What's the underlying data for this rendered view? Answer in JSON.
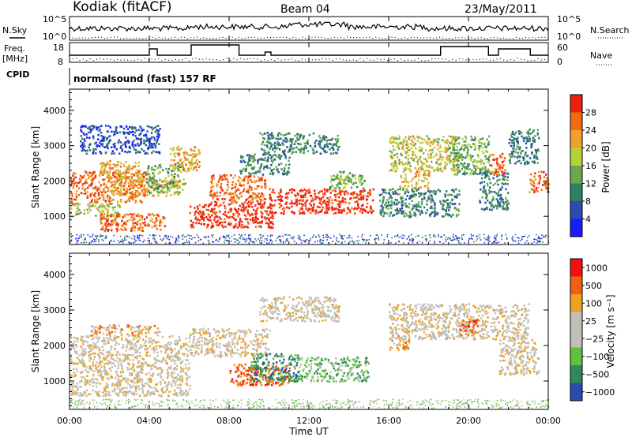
{
  "header": {
    "station": "Kodiak (fitACF)",
    "beam": "Beam 04",
    "date": "23/May/2011"
  },
  "top_panel": {
    "nsky_label": "N.Sky",
    "nsearch_label": "N.Search",
    "left_axis_ticks": [
      "10^5",
      "10^0"
    ],
    "right_axis_ticks": [
      "10^5",
      "10^0"
    ]
  },
  "freq_panel": {
    "freq_label_line1": "Freq.",
    "freq_label_line2": "[MHz]",
    "nave_label": "Nave",
    "left_axis_ticks": [
      "18",
      "8"
    ],
    "right_axis_ticks": [
      "60",
      "0"
    ]
  },
  "cpid_panel": {
    "cpid_label": "CPID",
    "mode_text": "normalsound (fast) 157 RF"
  },
  "colors": {
    "power": [
      "#1a1aff",
      "#2a4bb0",
      "#2f8060",
      "#6aa84f",
      "#b5d334",
      "#f0a030",
      "#f06a10",
      "#f02010"
    ],
    "velocity": [
      "#f01010",
      "#f06010",
      "#f0a020",
      "#c0c0b8",
      "#c0c0b8",
      "#60c040",
      "#2e8b57",
      "#2a4bb0"
    ]
  },
  "chart_data": [
    {
      "type": "heatmap",
      "title": "Power",
      "xlabel": "",
      "ylabel": "Slant Range [km]",
      "xlim": [
        "00:00",
        "24:00"
      ],
      "ylim": [
        200,
        4600
      ],
      "yticks": [
        "1000",
        "2000",
        "3000",
        "4000"
      ],
      "colorbar_label": "Power [dB]",
      "colorbar_ticks": [
        "4",
        "8",
        "12",
        "16",
        "20",
        "24",
        "28"
      ],
      "colorbar_range": [
        0,
        32
      ],
      "regions": [
        {
          "t0": 0.0,
          "t1": 3.8,
          "r0": 1400,
          "r1": 2300,
          "level": 6
        },
        {
          "t0": 0.0,
          "t1": 2.5,
          "r0": 1000,
          "r1": 1400,
          "level": 4
        },
        {
          "t0": 1.5,
          "t1": 4.8,
          "r0": 600,
          "r1": 1100,
          "level": 6
        },
        {
          "t0": 2.0,
          "t1": 5.5,
          "r0": 1600,
          "r1": 2100,
          "level": 5
        },
        {
          "t0": 3.8,
          "t1": 5.8,
          "r0": 1700,
          "r1": 2500,
          "level": 3
        },
        {
          "t0": 1.5,
          "t1": 3.5,
          "r0": 2100,
          "r1": 2600,
          "level": 5
        },
        {
          "t0": 0.5,
          "t1": 4.5,
          "r0": 2800,
          "r1": 3600,
          "level": 1
        },
        {
          "t0": 5.0,
          "t1": 6.5,
          "r0": 2300,
          "r1": 3000,
          "level": 5
        },
        {
          "t0": 6.0,
          "t1": 10.2,
          "r0": 700,
          "r1": 1400,
          "level": 7
        },
        {
          "t0": 7.0,
          "t1": 9.8,
          "r0": 1400,
          "r1": 2200,
          "level": 6
        },
        {
          "t0": 8.5,
          "t1": 11.0,
          "r0": 2200,
          "r1": 2800,
          "level": 2
        },
        {
          "t0": 9.5,
          "t1": 13.5,
          "r0": 2800,
          "r1": 3400,
          "level": 2
        },
        {
          "t0": 10.0,
          "t1": 15.2,
          "r0": 1100,
          "r1": 1800,
          "level": 7
        },
        {
          "t0": 13.0,
          "t1": 14.8,
          "r0": 1800,
          "r1": 2300,
          "level": 3
        },
        {
          "t0": 16.5,
          "t1": 18.0,
          "r0": 1800,
          "r1": 2300,
          "level": 5
        },
        {
          "t0": 16.0,
          "t1": 19.5,
          "r0": 2300,
          "r1": 3300,
          "level": 4
        },
        {
          "t0": 15.5,
          "t1": 19.5,
          "r0": 1000,
          "r1": 1800,
          "level": 2
        },
        {
          "t0": 19.0,
          "t1": 21.0,
          "r0": 2200,
          "r1": 3300,
          "level": 3
        },
        {
          "t0": 20.5,
          "t1": 22.0,
          "r0": 1200,
          "r1": 2300,
          "level": 2
        },
        {
          "t0": 21.0,
          "t1": 21.8,
          "r0": 2200,
          "r1": 2800,
          "level": 6
        },
        {
          "t0": 22.0,
          "t1": 23.5,
          "r0": 2500,
          "r1": 3500,
          "level": 2
        },
        {
          "t0": 23.0,
          "t1": 24.0,
          "r0": 1700,
          "r1": 2300,
          "level": 6
        }
      ]
    },
    {
      "type": "heatmap",
      "title": "Velocity",
      "xlabel": "Time UT",
      "ylabel": "Slant Range [km]",
      "xlim": [
        "00:00",
        "24:00"
      ],
      "ylim": [
        200,
        4600
      ],
      "xticks": [
        "00:00",
        "04:00",
        "08:00",
        "12:00",
        "16:00",
        "20:00",
        "00:00"
      ],
      "yticks": [
        "1000",
        "2000",
        "3000",
        "4000"
      ],
      "colorbar_label": "Velocity [m s⁻¹]",
      "colorbar_ticks": [
        "1000",
        "500",
        "100",
        "25",
        "−25",
        "−100",
        "−500",
        "−1000"
      ],
      "regions": [
        {
          "t0": 0.0,
          "t1": 6.0,
          "r0": 600,
          "r1": 2300,
          "level": 3
        },
        {
          "t0": 1.0,
          "t1": 4.5,
          "r0": 2300,
          "r1": 2600,
          "level": 2
        },
        {
          "t0": 6.0,
          "t1": 10.0,
          "r0": 1700,
          "r1": 2500,
          "level": 3
        },
        {
          "t0": 8.0,
          "t1": 11.0,
          "r0": 900,
          "r1": 1500,
          "level": 1
        },
        {
          "t0": 9.0,
          "t1": 11.5,
          "r0": 1000,
          "r1": 1800,
          "level": 6
        },
        {
          "t0": 11.5,
          "t1": 15.0,
          "r0": 1000,
          "r1": 1700,
          "level": 5
        },
        {
          "t0": 9.5,
          "t1": 13.5,
          "r0": 2700,
          "r1": 3400,
          "level": 3
        },
        {
          "t0": 16.0,
          "t1": 17.0,
          "r0": 1900,
          "r1": 2300,
          "level": 2
        },
        {
          "t0": 16.0,
          "t1": 23.0,
          "r0": 2200,
          "r1": 3200,
          "level": 3
        },
        {
          "t0": 19.5,
          "t1": 20.5,
          "r0": 2300,
          "r1": 2800,
          "level": 1
        },
        {
          "t0": 21.5,
          "t1": 23.5,
          "r0": 1200,
          "r1": 2200,
          "level": 3
        }
      ]
    }
  ]
}
